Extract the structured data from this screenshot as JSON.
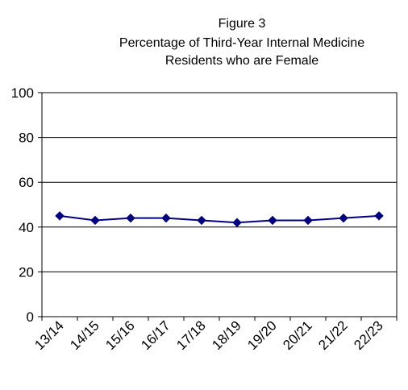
{
  "chart_data": {
    "type": "line",
    "title_lines": [
      "Figure 3",
      "Percentage of Third-Year Internal Medicine",
      "Residents who are Female"
    ],
    "xlabel": "",
    "ylabel": "",
    "categories": [
      "13/14",
      "14/15",
      "15/16",
      "16/17",
      "17/18",
      "18/19",
      "19/20",
      "20/21",
      "21/22",
      "22/23"
    ],
    "series": [
      {
        "values": [
          45,
          43,
          44,
          44,
          43,
          42,
          43,
          43,
          44,
          45
        ],
        "color": "#000080"
      }
    ],
    "ylim": [
      0,
      100
    ],
    "yticks": [
      0,
      20,
      40,
      60,
      80,
      100
    ],
    "grid": "horizontal",
    "legend": "none",
    "marker": "diamond"
  }
}
